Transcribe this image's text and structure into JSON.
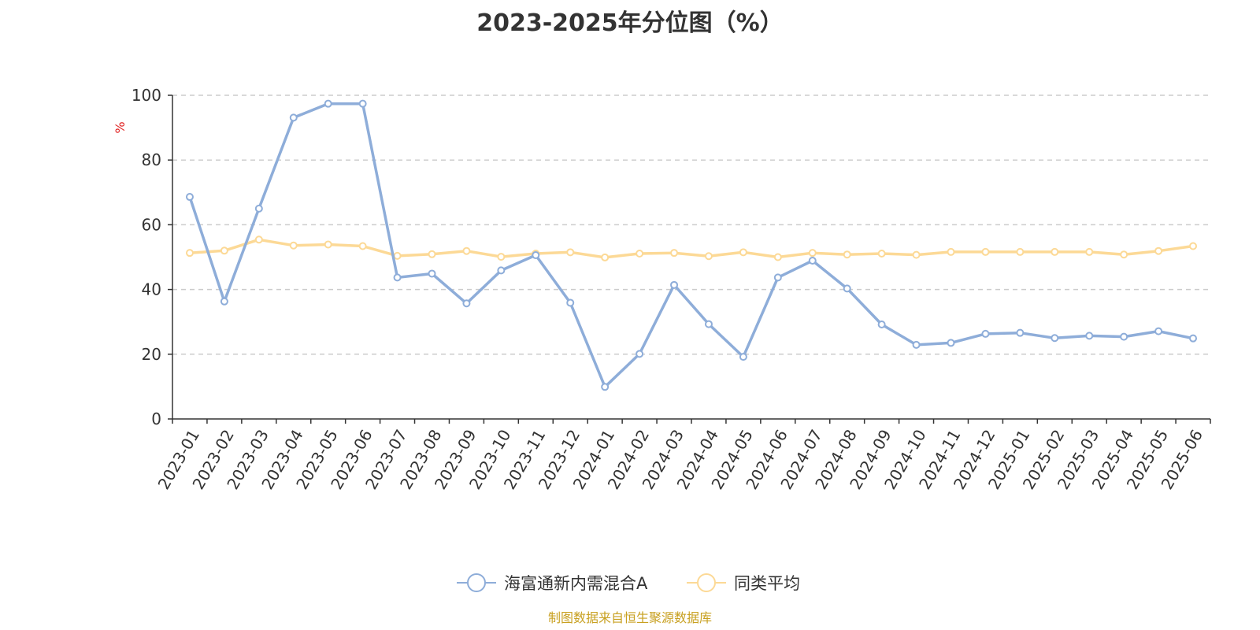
{
  "chart_data": {
    "type": "line",
    "title": "2023-2025年分位图（%）",
    "ylabel": "%",
    "xlabel": "",
    "ylim": [
      0,
      100
    ],
    "yticks": [
      0,
      20,
      40,
      60,
      80,
      100
    ],
    "grid": true,
    "legend_position": "bottom",
    "categories": [
      "2023-01",
      "2023-02",
      "2023-03",
      "2023-04",
      "2023-05",
      "2023-06",
      "2023-07",
      "2023-08",
      "2023-09",
      "2023-10",
      "2023-11",
      "2023-12",
      "2024-01",
      "2024-02",
      "2024-03",
      "2024-04",
      "2024-05",
      "2024-06",
      "2024-07",
      "2024-08",
      "2024-09",
      "2024-10",
      "2024-11",
      "2024-12",
      "2025-01",
      "2025-02",
      "2025-03",
      "2025-04",
      "2025-05",
      "2025-06"
    ],
    "series": [
      {
        "name": "海富通新内需混合A",
        "color": "#8eadd9",
        "values": [
          68.6,
          36.3,
          65.0,
          93.1,
          97.4,
          97.4,
          43.7,
          44.9,
          35.7,
          45.9,
          50.6,
          35.9,
          9.9,
          20.1,
          41.4,
          29.3,
          19.2,
          43.7,
          48.9,
          40.3,
          29.2,
          22.9,
          23.5,
          26.3,
          26.6,
          25.0,
          25.7,
          25.4,
          27.1,
          24.9
        ]
      },
      {
        "name": "同类平均",
        "color": "#fcd996",
        "values": [
          51.3,
          52.0,
          55.4,
          53.6,
          53.9,
          53.4,
          50.4,
          50.9,
          51.9,
          50.1,
          51.1,
          51.5,
          49.9,
          51.1,
          51.3,
          50.3,
          51.5,
          50.0,
          51.3,
          50.8,
          51.1,
          50.7,
          51.6,
          51.6,
          51.6,
          51.6,
          51.6,
          50.8,
          51.9,
          53.4
        ]
      }
    ]
  },
  "source_note": "制图数据来自恒生聚源数据库"
}
